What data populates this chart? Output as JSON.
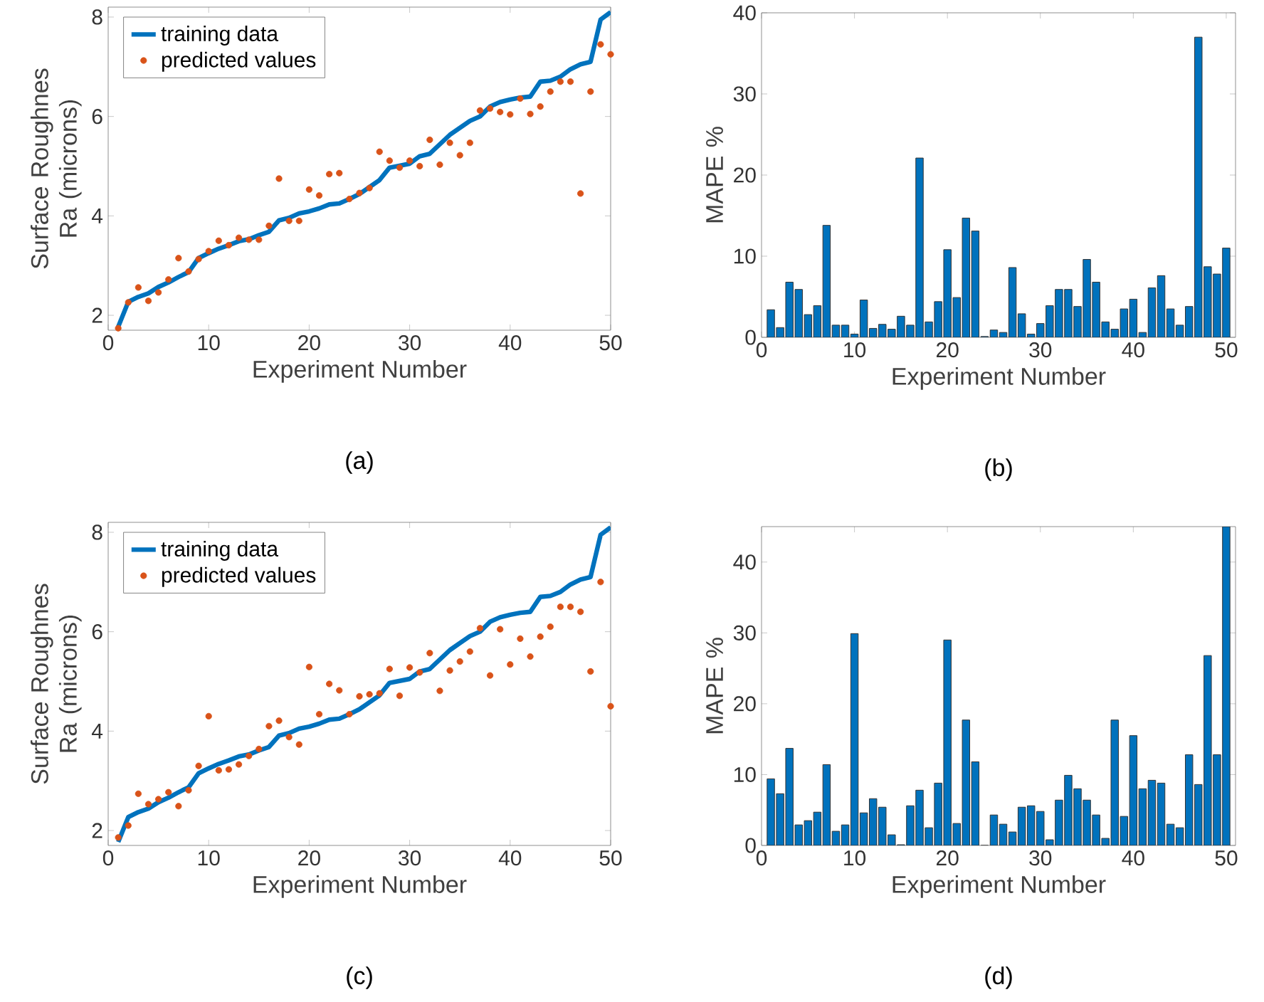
{
  "chart_data": [
    {
      "type": "line",
      "xlabel": "Experiment Number",
      "ylabel": "Surface Roughnes Ra (microns)",
      "annotations": [
        "(a)"
      ],
      "legend": "top left",
      "xlim": [
        0,
        50
      ],
      "xticks": [
        0,
        10,
        20,
        30,
        40,
        50
      ],
      "ylim": [
        1.7,
        8.2
      ],
      "yticks": [
        2,
        4,
        6,
        8
      ],
      "x": [
        1,
        2,
        3,
        4,
        5,
        6,
        7,
        8,
        9,
        10,
        11,
        12,
        13,
        14,
        15,
        16,
        17,
        18,
        19,
        20,
        21,
        22,
        23,
        24,
        25,
        26,
        27,
        28,
        29,
        30,
        31,
        32,
        33,
        34,
        35,
        36,
        37,
        38,
        39,
        40,
        41,
        42,
        43,
        44,
        45,
        46,
        47,
        48,
        49,
        50
      ],
      "series": [
        {
          "name": "training data",
          "type": "line",
          "color": "#0072bd",
          "values": [
            1.77,
            2.27,
            2.37,
            2.44,
            2.57,
            2.66,
            2.77,
            2.87,
            3.15,
            3.25,
            3.34,
            3.41,
            3.49,
            3.53,
            3.61,
            3.68,
            3.91,
            3.96,
            4.05,
            4.09,
            4.15,
            4.23,
            4.25,
            4.34,
            4.44,
            4.58,
            4.72,
            4.97,
            5.01,
            5.05,
            5.2,
            5.25,
            5.44,
            5.63,
            5.77,
            5.91,
            6.0,
            6.2,
            6.29,
            6.34,
            6.38,
            6.4,
            6.7,
            6.72,
            6.8,
            6.95,
            7.05,
            7.1,
            7.95,
            8.1
          ]
        },
        {
          "name": "predicted values",
          "type": "scatter",
          "color": "#d95319",
          "values": [
            1.74,
            2.26,
            2.56,
            2.29,
            2.46,
            2.72,
            3.15,
            2.88,
            3.13,
            3.29,
            3.5,
            3.41,
            3.56,
            3.52,
            3.52,
            3.8,
            4.75,
            3.9,
            3.9,
            4.53,
            4.41,
            4.84,
            4.86,
            4.34,
            4.46,
            4.56,
            5.29,
            5.11,
            4.97,
            5.11,
            5.0,
            5.53,
            5.03,
            5.47,
            5.22,
            5.47,
            6.12,
            6.16,
            6.09,
            6.04,
            6.36,
            6.05,
            6.2,
            6.5,
            6.7,
            6.7,
            4.45,
            6.5,
            7.45,
            7.25
          ]
        }
      ]
    },
    {
      "type": "bar",
      "xlabel": "Experiment Number",
      "ylabel": "MAPE %",
      "annotations": [
        "(b)"
      ],
      "xlim": [
        0,
        51
      ],
      "xticks": [
        0,
        10,
        20,
        30,
        40,
        50
      ],
      "ylim": [
        0,
        40
      ],
      "yticks": [
        0,
        10,
        20,
        30,
        40
      ],
      "color": "#0072bd",
      "x": [
        1,
        2,
        3,
        4,
        5,
        6,
        7,
        8,
        9,
        10,
        11,
        12,
        13,
        14,
        15,
        16,
        17,
        18,
        19,
        20,
        21,
        22,
        23,
        24,
        25,
        26,
        27,
        28,
        29,
        30,
        31,
        32,
        33,
        34,
        35,
        36,
        37,
        38,
        39,
        40,
        41,
        42,
        43,
        44,
        45,
        46,
        47,
        48,
        49,
        50
      ],
      "values": [
        3.4,
        1.2,
        6.8,
        5.9,
        2.8,
        3.9,
        13.8,
        1.5,
        1.5,
        0.4,
        4.6,
        1.1,
        1.6,
        1.0,
        2.6,
        1.5,
        22.1,
        1.9,
        4.4,
        10.8,
        4.9,
        14.7,
        13.1,
        0.1,
        0.9,
        0.6,
        8.6,
        2.9,
        0.4,
        1.7,
        3.9,
        5.9,
        5.9,
        3.8,
        9.6,
        6.8,
        1.9,
        1.0,
        3.5,
        4.7,
        0.6,
        6.1,
        7.6,
        3.5,
        1.5,
        3.8,
        37,
        8.7,
        7.8,
        11
      ]
    },
    {
      "type": "line",
      "xlabel": "Experiment Number",
      "ylabel": "Surface Roughnes Ra (microns)",
      "annotations": [
        "(c)"
      ],
      "legend": "top left",
      "xlim": [
        0,
        50
      ],
      "xticks": [
        0,
        10,
        20,
        30,
        40,
        50
      ],
      "ylim": [
        1.7,
        8.2
      ],
      "yticks": [
        2,
        4,
        6,
        8
      ],
      "x": [
        1,
        2,
        3,
        4,
        5,
        6,
        7,
        8,
        9,
        10,
        11,
        12,
        13,
        14,
        15,
        16,
        17,
        18,
        19,
        20,
        21,
        22,
        23,
        24,
        25,
        26,
        27,
        28,
        29,
        30,
        31,
        32,
        33,
        34,
        35,
        36,
        37,
        38,
        39,
        40,
        41,
        42,
        43,
        44,
        45,
        46,
        47,
        48,
        49,
        50
      ],
      "series": [
        {
          "name": "training data",
          "type": "line",
          "color": "#0072bd",
          "values": [
            1.77,
            2.27,
            2.37,
            2.44,
            2.57,
            2.66,
            2.77,
            2.87,
            3.15,
            3.25,
            3.34,
            3.41,
            3.49,
            3.53,
            3.61,
            3.68,
            3.91,
            3.96,
            4.05,
            4.09,
            4.15,
            4.23,
            4.25,
            4.34,
            4.44,
            4.58,
            4.72,
            4.97,
            5.01,
            5.05,
            5.2,
            5.25,
            5.44,
            5.63,
            5.77,
            5.91,
            6.0,
            6.2,
            6.29,
            6.34,
            6.38,
            6.4,
            6.7,
            6.72,
            6.8,
            6.95,
            7.05,
            7.1,
            7.95,
            8.1
          ]
        },
        {
          "name": "predicted values",
          "type": "scatter",
          "color": "#d95319",
          "values": [
            1.86,
            2.1,
            2.74,
            2.53,
            2.63,
            2.77,
            2.49,
            2.81,
            3.3,
            4.3,
            3.21,
            3.23,
            3.33,
            3.5,
            3.64,
            4.1,
            4.21,
            3.88,
            3.73,
            5.29,
            4.34,
            4.95,
            4.82,
            4.34,
            4.7,
            4.74,
            4.76,
            5.25,
            4.71,
            5.28,
            5.18,
            5.57,
            4.81,
            5.22,
            5.4,
            5.6,
            6.07,
            5.12,
            6.05,
            5.34,
            5.86,
            5.5,
            5.9,
            6.1,
            6.5,
            6.5,
            6.4,
            5.2,
            7.0,
            4.5
          ]
        }
      ]
    },
    {
      "type": "bar",
      "xlabel": "Experiment Number",
      "ylabel": "MAPE %",
      "annotations": [
        "(d)"
      ],
      "xlim": [
        0,
        51
      ],
      "xticks": [
        0,
        10,
        20,
        30,
        40,
        50
      ],
      "ylim": [
        0,
        45
      ],
      "yticks": [
        0,
        10,
        20,
        30,
        40
      ],
      "color": "#0072bd",
      "x": [
        1,
        2,
        3,
        4,
        5,
        6,
        7,
        8,
        9,
        10,
        11,
        12,
        13,
        14,
        15,
        16,
        17,
        18,
        19,
        20,
        21,
        22,
        23,
        24,
        25,
        26,
        27,
        28,
        29,
        30,
        31,
        32,
        33,
        34,
        35,
        36,
        37,
        38,
        39,
        40,
        41,
        42,
        43,
        44,
        45,
        46,
        47,
        48,
        49,
        50
      ],
      "values": [
        9.4,
        7.3,
        13.7,
        2.9,
        3.5,
        4.7,
        11.4,
        2.0,
        2.9,
        29.9,
        4.6,
        6.6,
        5.4,
        1.5,
        0.1,
        5.6,
        7.8,
        2.5,
        8.8,
        29.0,
        3.1,
        17.7,
        11.8,
        0,
        4.3,
        3.0,
        1.9,
        5.4,
        5.6,
        4.8,
        0.8,
        6.4,
        9.9,
        8.0,
        6.4,
        4.3,
        1.0,
        17.7,
        4.1,
        15.5,
        8.0,
        9.2,
        8.8,
        3.0,
        2.5,
        12.8,
        8.6,
        26.8,
        12.8,
        45
      ]
    }
  ]
}
